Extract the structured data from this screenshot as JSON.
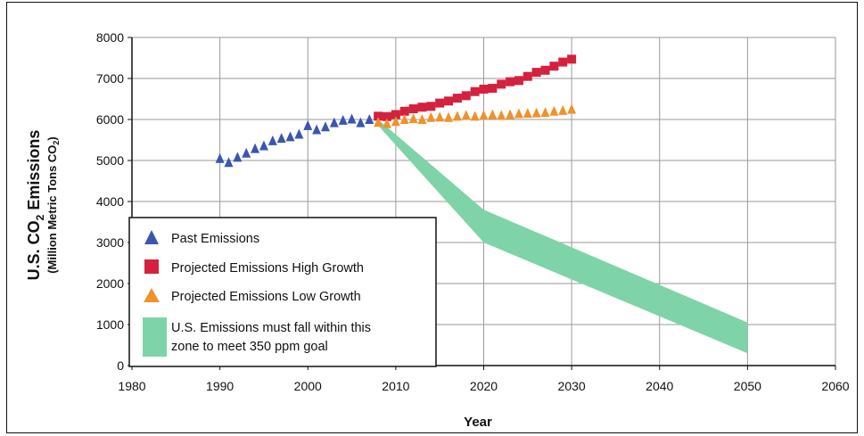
{
  "chart_data": {
    "type": "scatter",
    "title": "",
    "xlabel": "Year",
    "ylabel_main": "U.S. CO",
    "ylabel_sub": "2",
    "ylabel_end": " Emissions",
    "ylabel2_main": "(Million Metric Tons CO",
    "ylabel2_sub": "2",
    "ylabel2_end": ")",
    "xlim": [
      1980,
      2060
    ],
    "ylim": [
      0,
      8000
    ],
    "xticks": [
      1980,
      1990,
      2000,
      2010,
      2020,
      2030,
      2040,
      2050,
      2060
    ],
    "yticks": [
      0,
      1000,
      2000,
      3000,
      4000,
      5000,
      6000,
      7000,
      8000
    ],
    "grid": true,
    "legend_position": "lower-left",
    "series": [
      {
        "name": "Past Emissions",
        "marker": "triangle",
        "color": "#3a56b0",
        "x": [
          1990,
          1991,
          1992,
          1993,
          1994,
          1995,
          1996,
          1997,
          1998,
          1999,
          2000,
          2001,
          2002,
          2003,
          2004,
          2005,
          2006,
          2007
        ],
        "y": [
          5050,
          4950,
          5080,
          5180,
          5290,
          5360,
          5480,
          5540,
          5580,
          5640,
          5850,
          5750,
          5820,
          5920,
          5980,
          6010,
          5920,
          6000
        ]
      },
      {
        "name": "Projected Emissions High Growth",
        "marker": "square",
        "color": "#d4213d",
        "x": [
          2008,
          2009,
          2010,
          2011,
          2012,
          2013,
          2014,
          2015,
          2016,
          2017,
          2018,
          2019,
          2020,
          2021,
          2022,
          2023,
          2024,
          2025,
          2026,
          2027,
          2028,
          2029,
          2030
        ],
        "y": [
          6080,
          6070,
          6120,
          6200,
          6260,
          6300,
          6320,
          6400,
          6450,
          6520,
          6580,
          6680,
          6740,
          6760,
          6860,
          6920,
          6950,
          7050,
          7150,
          7200,
          7300,
          7400,
          7470
        ]
      },
      {
        "name": "Projected Emissions Low Growth",
        "marker": "triangle",
        "color": "#f0922b",
        "x": [
          2008,
          2009,
          2010,
          2011,
          2012,
          2013,
          2014,
          2015,
          2016,
          2017,
          2018,
          2019,
          2020,
          2021,
          2022,
          2023,
          2024,
          2025,
          2026,
          2027,
          2028,
          2029,
          2030
        ],
        "y": [
          5930,
          5900,
          5950,
          6000,
          6020,
          6000,
          6050,
          6060,
          6050,
          6080,
          6100,
          6080,
          6100,
          6120,
          6100,
          6120,
          6140,
          6150,
          6160,
          6170,
          6200,
          6220,
          6250
        ]
      }
    ],
    "zone": {
      "name": "U.S. Emissions must fall within this zone to meet 350 ppm goal",
      "legend_line1": "U.S. Emissions must fall within this",
      "legend_line2": "zone to meet 350 ppm goal",
      "color": "#7fd3a8",
      "x": [
        2008,
        2020,
        2050
      ],
      "upper": [
        6000,
        3800,
        1050
      ],
      "lower": [
        5850,
        3000,
        300
      ]
    }
  }
}
